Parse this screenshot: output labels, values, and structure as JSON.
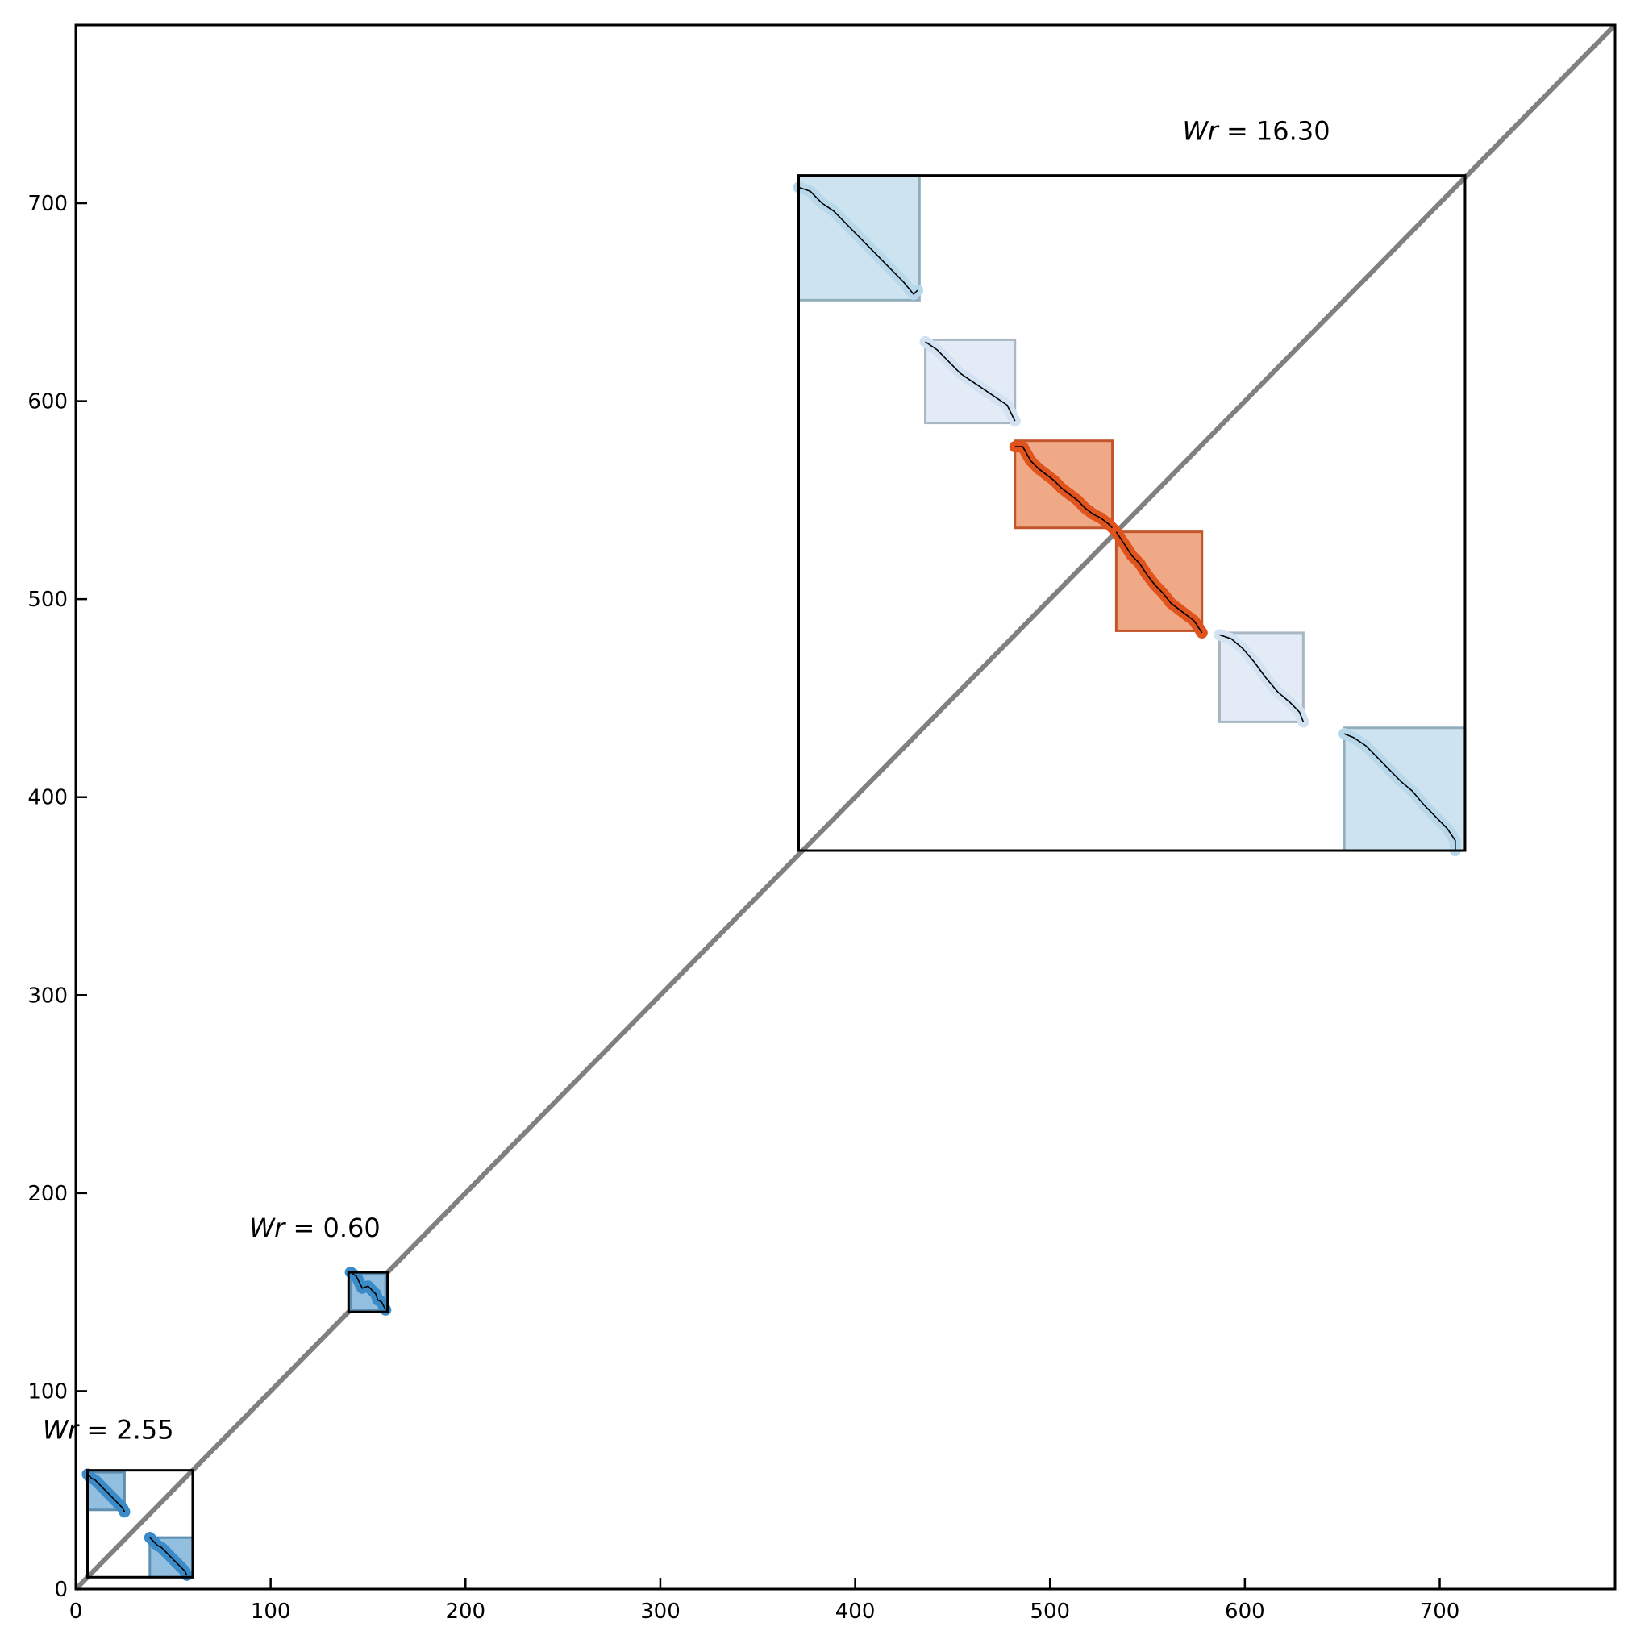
{
  "chart_data": {
    "type": "scatter",
    "title": "",
    "xlabel": "",
    "ylabel": "",
    "xlim": [
      0,
      790
    ],
    "ylim": [
      0,
      790
    ],
    "xticks": [
      0,
      100,
      200,
      300,
      400,
      500,
      600,
      700
    ],
    "yticks": [
      0,
      100,
      200,
      300,
      400,
      500,
      600,
      700
    ],
    "grid": false,
    "legend": "none",
    "colors": {
      "diagonal": "#808080",
      "dark_blue": "#3a8bc8",
      "dark_blue_fill": "#92bfdf",
      "mid_blue": "#b7d8ea",
      "mid_blue_fill": "#cde3ef",
      "pale_blue": "#d2e2f2",
      "pale_blue_fill": "#e2ebf6",
      "orange": "#e0531c",
      "orange_fill": "#f0a986",
      "frame": "#000000",
      "curve": "#000000"
    },
    "diagonal": {
      "from": [
        0,
        0
      ],
      "to": [
        790,
        790
      ]
    },
    "groups": [
      {
        "annotation": {
          "var": "Wr",
          "text": " = 2.55",
          "at": [
            -17,
            76
          ]
        },
        "frame": [
          6,
          6,
          60,
          60
        ],
        "sub_boxes": [
          {
            "xlim": [
              6,
              25
            ],
            "ylim": [
              40,
              59
            ],
            "style": "dark_blue",
            "x": [
              6,
              8,
              10,
              12,
              14,
              16,
              18,
              20,
              22,
              24,
              25
            ],
            "y": [
              58,
              56,
              55,
              53,
              51,
              49,
              47,
              45,
              43,
              41,
              39
            ]
          },
          {
            "xlim": [
              38,
              60
            ],
            "ylim": [
              6,
              26
            ],
            "style": "dark_blue",
            "x": [
              38,
              40,
              42,
              44,
              46,
              48,
              50,
              52,
              54,
              56,
              57
            ],
            "y": [
              26,
              24,
              22,
              21,
              19,
              17,
              15,
              13,
              11,
              9,
              7
            ]
          }
        ]
      },
      {
        "annotation": {
          "var": "Wr",
          "text": " = 0.60",
          "at": [
            89,
            178
          ]
        },
        "frame": [
          140,
          140,
          160,
          160
        ],
        "sub_boxes": [
          {
            "xlim": [
              141,
              159
            ],
            "ylim": [
              141,
              159
            ],
            "style": "dark_blue",
            "x": [
              141,
              144,
              146,
              147,
              150,
              152,
              154,
              155,
              157,
              159
            ],
            "y": [
              160,
              158,
              154,
              152,
              153,
              151,
              149,
              146,
              145,
              141
            ]
          }
        ]
      },
      {
        "annotation": {
          "var": "Wr",
          "text": " = 16.30",
          "at": [
            568,
            732
          ]
        },
        "frame": [
          371,
          373,
          713,
          714
        ],
        "sub_boxes": [
          {
            "xlim": [
              371,
              433
            ],
            "ylim": [
              651,
              714
            ],
            "style": "mid_blue",
            "x": [
              371,
              377,
              383,
              389,
              395,
              401,
              407,
              413,
              419,
              425,
              430,
              432
            ],
            "y": [
              708,
              706,
              700,
              696,
              690,
              684,
              678,
              672,
              666,
              660,
              654,
              656
            ]
          },
          {
            "xlim": [
              436,
              482
            ],
            "ylim": [
              589,
              631
            ],
            "style": "pale_blue",
            "x": [
              436,
              442,
              448,
              454,
              460,
              466,
              472,
              478,
              482
            ],
            "y": [
              630,
              626,
              620,
              614,
              610,
              606,
              602,
              598,
              590
            ]
          },
          {
            "xlim": [
              482,
              532
            ],
            "ylim": [
              536,
              580
            ],
            "style": "orange",
            "x": [
              482,
              486,
              490,
              494,
              498,
              502,
              506,
              510,
              514,
              518,
              522,
              526,
              530,
              534
            ],
            "y": [
              577,
              577,
              570,
              566,
              563,
              560,
              556,
              553,
              550,
              546,
              543,
              541,
              538,
              534
            ]
          },
          {
            "xlim": [
              534,
              578
            ],
            "ylim": [
              484,
              534
            ],
            "style": "orange",
            "x": [
              534,
              538,
              542,
              546,
              550,
              554,
              558,
              562,
              566,
              570,
              574,
              578
            ],
            "y": [
              534,
              528,
              522,
              518,
              512,
              507,
              503,
              498,
              495,
              492,
              489,
              483
            ]
          },
          {
            "xlim": [
              587,
              630
            ],
            "ylim": [
              438,
              483
            ],
            "style": "pale_blue",
            "x": [
              587,
              593,
              599,
              605,
              611,
              617,
              623,
              628,
              630
            ],
            "y": [
              482,
              480,
              475,
              468,
              460,
              453,
              448,
              443,
              438
            ]
          },
          {
            "xlim": [
              651,
              713
            ],
            "ylim": [
              373,
              435
            ],
            "style": "mid_blue",
            "x": [
              651,
              656,
              662,
              668,
              674,
              680,
              686,
              692,
              698,
              704,
              708,
              708
            ],
            "y": [
              432,
              430,
              426,
              420,
              414,
              408,
              403,
              396,
              390,
              384,
              378,
              373
            ]
          }
        ]
      }
    ]
  }
}
